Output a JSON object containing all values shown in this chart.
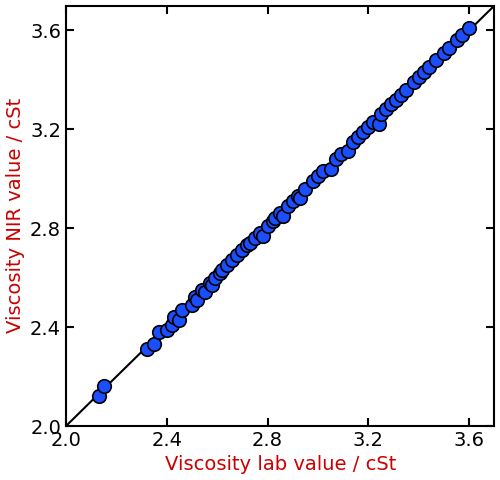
{
  "xlabel": "Viscosity lab value / cSt",
  "ylabel": "Viscosity NIR value / cSt",
  "xlabel_color": "#cc0000",
  "ylabel_color": "#cc0000",
  "xlim": [
    2.0,
    3.7
  ],
  "ylim": [
    2.0,
    3.7
  ],
  "xticks": [
    2.0,
    2.4,
    2.8,
    3.2,
    3.6
  ],
  "yticks": [
    2.0,
    2.4,
    2.8,
    3.2,
    3.6
  ],
  "line_color": "#000000",
  "line_x": [
    2.0,
    3.7
  ],
  "line_y": [
    2.0,
    3.7
  ],
  "marker_color": "#1a4fff",
  "marker_edge_color": "#000000",
  "marker_size": 95,
  "marker_edge_width": 1.2,
  "scatter_x": [
    2.13,
    2.15,
    2.32,
    2.35,
    2.37,
    2.4,
    2.42,
    2.43,
    2.45,
    2.46,
    2.5,
    2.51,
    2.52,
    2.54,
    2.55,
    2.57,
    2.58,
    2.59,
    2.61,
    2.62,
    2.64,
    2.66,
    2.68,
    2.7,
    2.72,
    2.73,
    2.75,
    2.77,
    2.78,
    2.8,
    2.82,
    2.83,
    2.85,
    2.86,
    2.88,
    2.9,
    2.92,
    2.93,
    2.95,
    2.98,
    3.0,
    3.02,
    3.05,
    3.07,
    3.09,
    3.12,
    3.14,
    3.16,
    3.18,
    3.2,
    3.22,
    3.24,
    3.25,
    3.27,
    3.29,
    3.31,
    3.33,
    3.35,
    3.38,
    3.4,
    3.42,
    3.44,
    3.47,
    3.5,
    3.52,
    3.55,
    3.57,
    3.6
  ],
  "scatter_y": [
    2.12,
    2.16,
    2.31,
    2.33,
    2.38,
    2.39,
    2.41,
    2.44,
    2.43,
    2.47,
    2.49,
    2.52,
    2.51,
    2.55,
    2.54,
    2.58,
    2.57,
    2.6,
    2.62,
    2.63,
    2.65,
    2.67,
    2.69,
    2.71,
    2.73,
    2.74,
    2.76,
    2.78,
    2.77,
    2.81,
    2.83,
    2.84,
    2.86,
    2.85,
    2.89,
    2.91,
    2.93,
    2.92,
    2.96,
    2.99,
    3.01,
    3.03,
    3.04,
    3.08,
    3.1,
    3.11,
    3.15,
    3.17,
    3.19,
    3.21,
    3.23,
    3.22,
    3.26,
    3.28,
    3.3,
    3.32,
    3.34,
    3.36,
    3.39,
    3.41,
    3.43,
    3.45,
    3.48,
    3.51,
    3.53,
    3.56,
    3.58,
    3.61
  ],
  "tick_label_fontsize": 14,
  "axis_label_fontsize": 14,
  "figure_width": 5.0,
  "figure_height": 4.8,
  "figure_bg": "#ffffff",
  "axes_bg": "#ffffff"
}
